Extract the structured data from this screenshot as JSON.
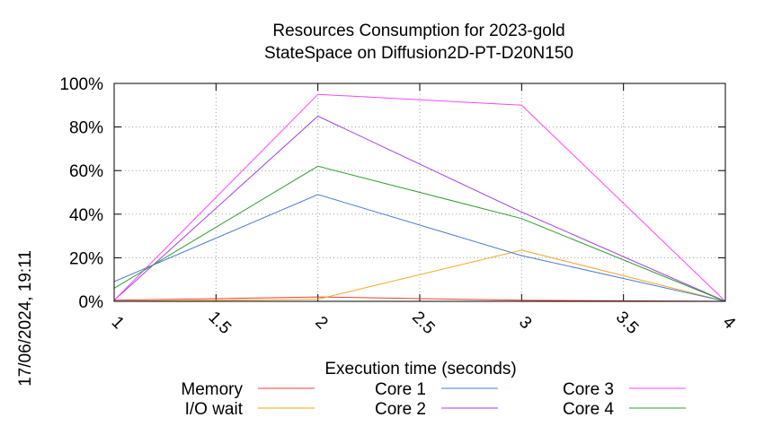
{
  "timestamp": "17/06/2024, 19:11",
  "chart_data": {
    "type": "line",
    "title": "Resources Consumption for 2023-gold",
    "subtitle": "StateSpace on Diffusion2D-PT-D20N150",
    "xlabel": "Execution time (seconds)",
    "ylabel": "",
    "xlim": [
      1,
      4
    ],
    "ylim": [
      0,
      100
    ],
    "x_ticks": [
      "1",
      "1.5",
      "2",
      "2.5",
      "3",
      "3.5",
      "4"
    ],
    "y_ticks": [
      "0%",
      "20%",
      "40%",
      "60%",
      "80%",
      "100%"
    ],
    "grid": true,
    "legend_position": "bottom",
    "x": [
      1,
      2,
      3,
      4
    ],
    "series": [
      {
        "name": "Memory",
        "color": "#e8413b",
        "values": [
          0.5,
          2,
          0.5,
          0
        ]
      },
      {
        "name": "I/O wait",
        "color": "#f5a623",
        "values": [
          0,
          1,
          23.5,
          0
        ]
      },
      {
        "name": "Core 1",
        "color": "#4a7bd5",
        "values": [
          9,
          49,
          21,
          0
        ]
      },
      {
        "name": "Core 2",
        "color": "#a040e8",
        "values": [
          0.5,
          85,
          41,
          0
        ]
      },
      {
        "name": "Core 3",
        "color": "#ff44ff",
        "values": [
          0.5,
          95,
          90,
          0
        ]
      },
      {
        "name": "Core 4",
        "color": "#2e9e2e",
        "values": [
          6,
          62,
          38,
          0
        ]
      }
    ]
  }
}
